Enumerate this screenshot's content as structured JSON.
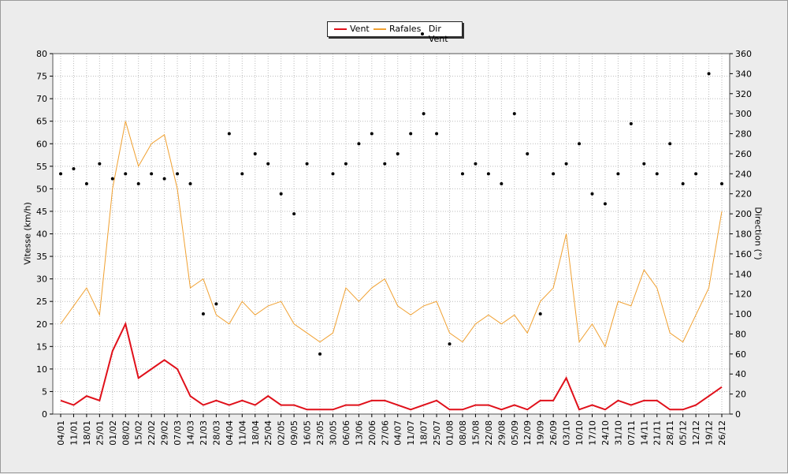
{
  "legend": {
    "wind_label": "Vent",
    "gust_label": "Rafales",
    "dir_label": "Dir Vent"
  },
  "axes": {
    "y_left_title": "Vitesse (km/h)",
    "y_right_title": "Direction (°)"
  },
  "colors": {
    "wind": "#e0101a",
    "gust": "#f0a030",
    "direction": "#000000",
    "grid": "#bbbbbb",
    "plot_bg": "#ffffff"
  },
  "chart_data": {
    "type": "line",
    "title": "",
    "xlabel": "",
    "ylabel": "Vitesse (km/h)",
    "ylabel_right": "Direction (°)",
    "ylim": [
      0,
      80
    ],
    "ylim_right": [
      0,
      360
    ],
    "y_ticks": [
      0,
      5,
      10,
      15,
      20,
      25,
      30,
      35,
      40,
      45,
      50,
      55,
      60,
      65,
      70,
      75,
      80
    ],
    "y_right_ticks": [
      0,
      20,
      40,
      60,
      80,
      100,
      120,
      140,
      160,
      180,
      200,
      220,
      240,
      260,
      280,
      300,
      320,
      340,
      360
    ],
    "x_tick_labels": [
      "04/01",
      "11/01",
      "18/01",
      "25/01",
      "01/02",
      "08/02",
      "15/02",
      "22/02",
      "29/02",
      "07/03",
      "14/03",
      "21/03",
      "28/03",
      "04/04",
      "11/04",
      "18/04",
      "25/04",
      "02/05",
      "09/05",
      "16/05",
      "23/05",
      "30/05",
      "06/06",
      "13/06",
      "20/06",
      "27/06",
      "04/07",
      "11/07",
      "18/07",
      "25/07",
      "01/08",
      "08/08",
      "15/08",
      "22/08",
      "29/08",
      "05/09",
      "12/09",
      "19/09",
      "26/09",
      "03/10",
      "10/10",
      "17/10",
      "24/10",
      "31/10",
      "07/11",
      "14/11",
      "21/11",
      "28/11",
      "05/12",
      "12/12",
      "19/12",
      "26/12"
    ],
    "grid": true,
    "legend_position": "top-center",
    "x": [
      "04/01",
      "11/01",
      "18/01",
      "25/01",
      "01/02",
      "08/02",
      "15/02",
      "22/02",
      "29/02",
      "07/03",
      "14/03",
      "21/03",
      "28/03",
      "04/04",
      "11/04",
      "18/04",
      "25/04",
      "02/05",
      "09/05",
      "16/05",
      "23/05",
      "30/05",
      "06/06",
      "13/06",
      "20/06",
      "27/06",
      "04/07",
      "11/07",
      "18/07",
      "25/07",
      "01/08",
      "08/08",
      "15/08",
      "22/08",
      "29/08",
      "05/09",
      "12/09",
      "19/09",
      "26/09",
      "03/10",
      "10/10",
      "17/10",
      "24/10",
      "31/10",
      "07/11",
      "14/11",
      "21/11",
      "28/11",
      "05/12",
      "12/12",
      "19/12",
      "26/12"
    ],
    "series": [
      {
        "name": "Vent",
        "axis": "left",
        "style": "line",
        "values": [
          3,
          2,
          4,
          3,
          14,
          20,
          8,
          10,
          12,
          10,
          4,
          2,
          3,
          2,
          3,
          2,
          4,
          2,
          2,
          1,
          1,
          1,
          2,
          2,
          3,
          3,
          2,
          1,
          2,
          3,
          1,
          1,
          2,
          2,
          1,
          2,
          1,
          3,
          3,
          8,
          1,
          2,
          1,
          3,
          2,
          3,
          3,
          1,
          1,
          2,
          4,
          6
        ]
      },
      {
        "name": "Rafales",
        "axis": "left",
        "style": "line",
        "values": [
          20,
          24,
          28,
          22,
          50,
          65,
          55,
          60,
          62,
          50,
          28,
          30,
          22,
          20,
          25,
          22,
          24,
          25,
          20,
          18,
          16,
          18,
          28,
          25,
          28,
          30,
          24,
          22,
          24,
          25,
          18,
          16,
          20,
          22,
          20,
          22,
          18,
          25,
          28,
          40,
          16,
          20,
          15,
          25,
          24,
          32,
          28,
          18,
          16,
          22,
          28,
          45
        ]
      },
      {
        "name": "Dir Vent",
        "axis": "right",
        "style": "scatter",
        "values": [
          240,
          245,
          230,
          250,
          235,
          240,
          230,
          240,
          235,
          240,
          230,
          100,
          110,
          280,
          240,
          260,
          250,
          220,
          200,
          250,
          60,
          240,
          250,
          270,
          280,
          250,
          260,
          280,
          300,
          280,
          70,
          240,
          250,
          240,
          230,
          300,
          260,
          100,
          240,
          250,
          270,
          220,
          210,
          240,
          290,
          250,
          240,
          270,
          230,
          240,
          340,
          230
        ]
      }
    ]
  }
}
